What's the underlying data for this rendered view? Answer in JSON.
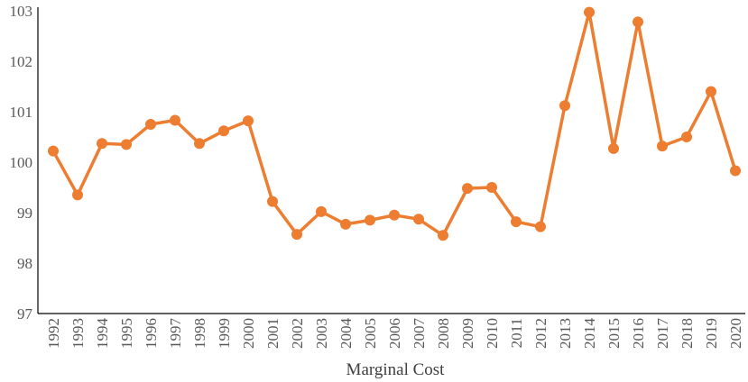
{
  "chart_data": {
    "type": "line",
    "title": "",
    "xlabel": "Marginal Cost",
    "ylabel": "",
    "x": [
      "1992",
      "1993",
      "1994",
      "1995",
      "1996",
      "1997",
      "1998",
      "1999",
      "2000",
      "2001",
      "2002",
      "2003",
      "2004",
      "2005",
      "2006",
      "2007",
      "2008",
      "2009",
      "2010",
      "2011",
      "2012",
      "2013",
      "2014",
      "2015",
      "2016",
      "2017",
      "2018",
      "2019",
      "2020"
    ],
    "series": [
      {
        "values": [
          100.22,
          99.35,
          100.37,
          100.35,
          100.75,
          100.83,
          100.37,
          100.62,
          100.82,
          99.22,
          98.57,
          99.02,
          98.77,
          98.85,
          98.95,
          98.87,
          98.55,
          99.48,
          99.5,
          98.82,
          98.72,
          101.12,
          102.97,
          100.27,
          102.78,
          100.32,
          100.5,
          101.4,
          99.83
        ]
      }
    ],
    "yticks": [
      "97",
      "98",
      "99",
      "100",
      "101",
      "102",
      "103"
    ],
    "ylim": [
      97,
      103
    ],
    "grid": false,
    "legend": "none",
    "colors": {
      "series": "#ED7D31",
      "axis": "#000000",
      "tick_text": "#595959"
    }
  }
}
